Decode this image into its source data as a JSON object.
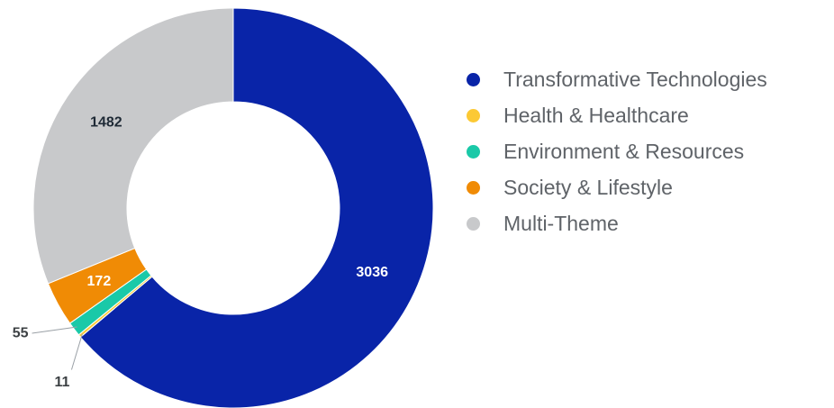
{
  "chart_data": {
    "type": "pie",
    "categories": [
      "Transformative Technologies",
      "Health & Healthcare",
      "Environment & Resources",
      "Society & Lifestyle",
      "Multi-Theme"
    ],
    "values": [
      3036,
      11,
      55,
      172,
      1482
    ],
    "colors": [
      "#0924a8",
      "#fcc934",
      "#1ac9a8",
      "#f08b05",
      "#c8c9cb"
    ],
    "label_colors": [
      "#ffffff",
      "#3c4043",
      "#3c4043",
      "#ffffff",
      "#1f2a36"
    ],
    "donut": true,
    "legend_position": "right"
  }
}
